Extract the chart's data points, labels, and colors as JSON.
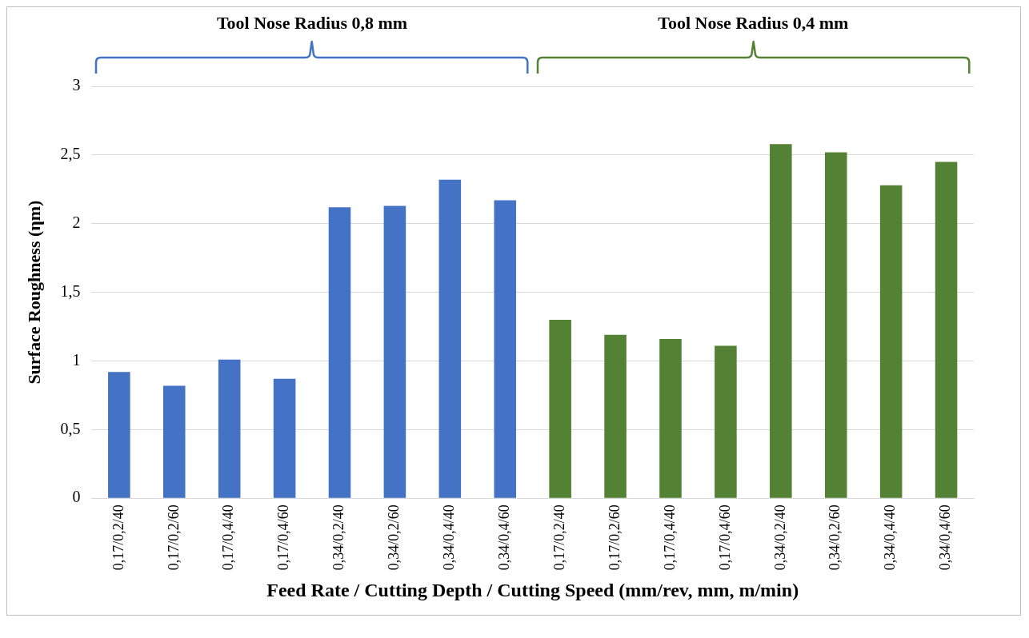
{
  "chart_data": {
    "type": "bar",
    "xlabel": "Feed Rate / Cutting Depth / Cutting Speed (mm/rev, mm, m/min)",
    "ylabel": "Surface Roughness (ηm)",
    "categories": [
      "0,17/0,2/40",
      "0,17/0,2/60",
      "0,17/0,4/40",
      "0,17/0,4/60",
      "0,34/0,2/40",
      "0,34/0,2/60",
      "0,34/0,4/40",
      "0,34/0,4/60",
      "0,17/0,2/40",
      "0,17/0,2/60",
      "0,17/0,4/40",
      "0,17/0,4/60",
      "0,34/0,2/40",
      "0,34/0,2/60",
      "0,34/0,4/40",
      "0,34/0,4/60"
    ],
    "values": [
      0.92,
      0.82,
      1.01,
      0.87,
      2.12,
      2.13,
      2.32,
      2.17,
      1.3,
      1.19,
      1.16,
      1.11,
      2.58,
      2.52,
      2.28,
      2.45
    ],
    "colors": [
      "#4472c4",
      "#4472c4",
      "#4472c4",
      "#4472c4",
      "#4472c4",
      "#4472c4",
      "#4472c4",
      "#4472c4",
      "#548235",
      "#548235",
      "#548235",
      "#548235",
      "#548235",
      "#548235",
      "#548235",
      "#548235"
    ],
    "ylim": [
      0,
      3
    ],
    "yticks": [
      0,
      {
        "value": 0.5,
        "label": "0,5"
      },
      1,
      {
        "value": 1.5,
        "label": "1,5"
      },
      2,
      {
        "value": 2.5,
        "label": "2,5"
      },
      3
    ],
    "grid": "y",
    "annotations": [
      "Tool Nose Radius 0,8 mm",
      "Tool Nose Radius 0,4 mm"
    ]
  }
}
